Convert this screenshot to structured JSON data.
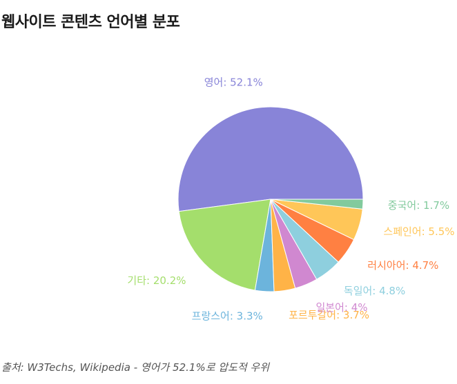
{
  "title": "웹사이트 콘텐츠 언어별 분포",
  "source_note": "출처: W3Techs, Wikipedia - 영어가 52.1%로 압도적 우위",
  "chart_data": {
    "type": "pie",
    "title": "웹사이트 콘텐츠 언어별 분포",
    "unit": "%",
    "slices": [
      {
        "name": "영어",
        "value": 52.1,
        "color": "#8884d8",
        "label": "영어: 52.1%"
      },
      {
        "name": "기타",
        "value": 20.2,
        "color": "#a4de6c",
        "label": "기타: 20.2%"
      },
      {
        "name": "프랑스어",
        "value": 3.3,
        "color": "#6cb4dc",
        "label": "프랑스어: 3.3%"
      },
      {
        "name": "포르투갈어",
        "value": 3.7,
        "color": "#ffb347",
        "label": "포르투갈어: 3.7%"
      },
      {
        "name": "일본어",
        "value": 4,
        "color": "#d088d0",
        "label": "일본어: 4%"
      },
      {
        "name": "독일어",
        "value": 4.8,
        "color": "#8ecfde",
        "label": "독일어: 4.8%"
      },
      {
        "name": "러시아어",
        "value": 4.7,
        "color": "#ff8042",
        "label": "러시아어: 4.7%"
      },
      {
        "name": "스페인어",
        "value": 5.5,
        "color": "#ffc658",
        "label": "스페인어: 5.5%"
      },
      {
        "name": "중국어",
        "value": 1.7,
        "color": "#82ca9d",
        "label": "중국어: 1.7%"
      }
    ],
    "legend": "none"
  }
}
